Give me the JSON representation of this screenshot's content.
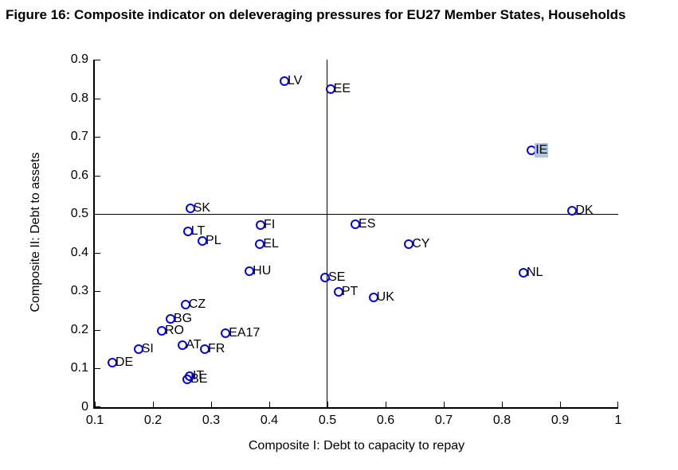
{
  "figure": {
    "title": "Figure 16: Composite indicator on deleveraging pressures for EU27 Member States, Households"
  },
  "chart_data": {
    "type": "scatter",
    "title": "Figure 16: Composite indicator on deleveraging pressures for EU27 Member States, Households",
    "xlabel": "Composite I: Debt to capacity to repay",
    "ylabel": "Composite II: Debt to assets",
    "xlim": [
      0.1,
      1.0
    ],
    "ylim": [
      0,
      0.9
    ],
    "x_ticks": [
      {
        "value": 0.1,
        "label": "0.1"
      },
      {
        "value": 0.2,
        "label": "0.2"
      },
      {
        "value": 0.3,
        "label": "0.3"
      },
      {
        "value": 0.4,
        "label": "0.4"
      },
      {
        "value": 0.5,
        "label": "0.5"
      },
      {
        "value": 0.6,
        "label": "0.6"
      },
      {
        "value": 0.7,
        "label": "0.7"
      },
      {
        "value": 0.8,
        "label": "0.8"
      },
      {
        "value": 0.9,
        "label": "0.9"
      },
      {
        "value": 1.0,
        "label": "1"
      }
    ],
    "y_ticks": [
      {
        "value": 0.0,
        "label": "0"
      },
      {
        "value": 0.1,
        "label": "0.1"
      },
      {
        "value": 0.2,
        "label": "0.2"
      },
      {
        "value": 0.3,
        "label": "0.3"
      },
      {
        "value": 0.4,
        "label": "0.4"
      },
      {
        "value": 0.5,
        "label": "0.5"
      },
      {
        "value": 0.6,
        "label": "0.6"
      },
      {
        "value": 0.7,
        "label": "0.7"
      },
      {
        "value": 0.8,
        "label": "0.8"
      },
      {
        "value": 0.9,
        "label": "0.9"
      }
    ],
    "reference_lines": {
      "vertical_x": 0.5,
      "horizontal_y": 0.5
    },
    "grid": false,
    "legend": null,
    "marker_color": "#0000ee",
    "highlight_color": "#abc7e2",
    "points": [
      {
        "label": "DE",
        "x": 0.13,
        "y": 0.115
      },
      {
        "label": "SI",
        "x": 0.175,
        "y": 0.15
      },
      {
        "label": "RO",
        "x": 0.215,
        "y": 0.197
      },
      {
        "label": "BG",
        "x": 0.23,
        "y": 0.228
      },
      {
        "label": "AT",
        "x": 0.251,
        "y": 0.161
      },
      {
        "label": "CZ",
        "x": 0.256,
        "y": 0.266
      },
      {
        "label": "BE",
        "x": 0.259,
        "y": 0.072
      },
      {
        "label": "IT",
        "x": 0.263,
        "y": 0.08
      },
      {
        "label": "LT",
        "x": 0.26,
        "y": 0.455
      },
      {
        "label": "SK",
        "x": 0.264,
        "y": 0.515
      },
      {
        "label": "PL",
        "x": 0.285,
        "y": 0.43
      },
      {
        "label": "FR",
        "x": 0.289,
        "y": 0.151
      },
      {
        "label": "EA17",
        "x": 0.325,
        "y": 0.191
      },
      {
        "label": "HU",
        "x": 0.366,
        "y": 0.352
      },
      {
        "label": "EL",
        "x": 0.384,
        "y": 0.422
      },
      {
        "label": "FI",
        "x": 0.385,
        "y": 0.472
      },
      {
        "label": "LV",
        "x": 0.426,
        "y": 0.845
      },
      {
        "label": "SE",
        "x": 0.496,
        "y": 0.336
      },
      {
        "label": "EE",
        "x": 0.505,
        "y": 0.824
      },
      {
        "label": "PT",
        "x": 0.519,
        "y": 0.299
      },
      {
        "label": "ES",
        "x": 0.548,
        "y": 0.474
      },
      {
        "label": "UK",
        "x": 0.579,
        "y": 0.285
      },
      {
        "label": "CY",
        "x": 0.64,
        "y": 0.422
      },
      {
        "label": "NL",
        "x": 0.837,
        "y": 0.348
      },
      {
        "label": "IE",
        "x": 0.851,
        "y": 0.665,
        "highlighted": true
      },
      {
        "label": "DK",
        "x": 0.921,
        "y": 0.508
      }
    ]
  }
}
